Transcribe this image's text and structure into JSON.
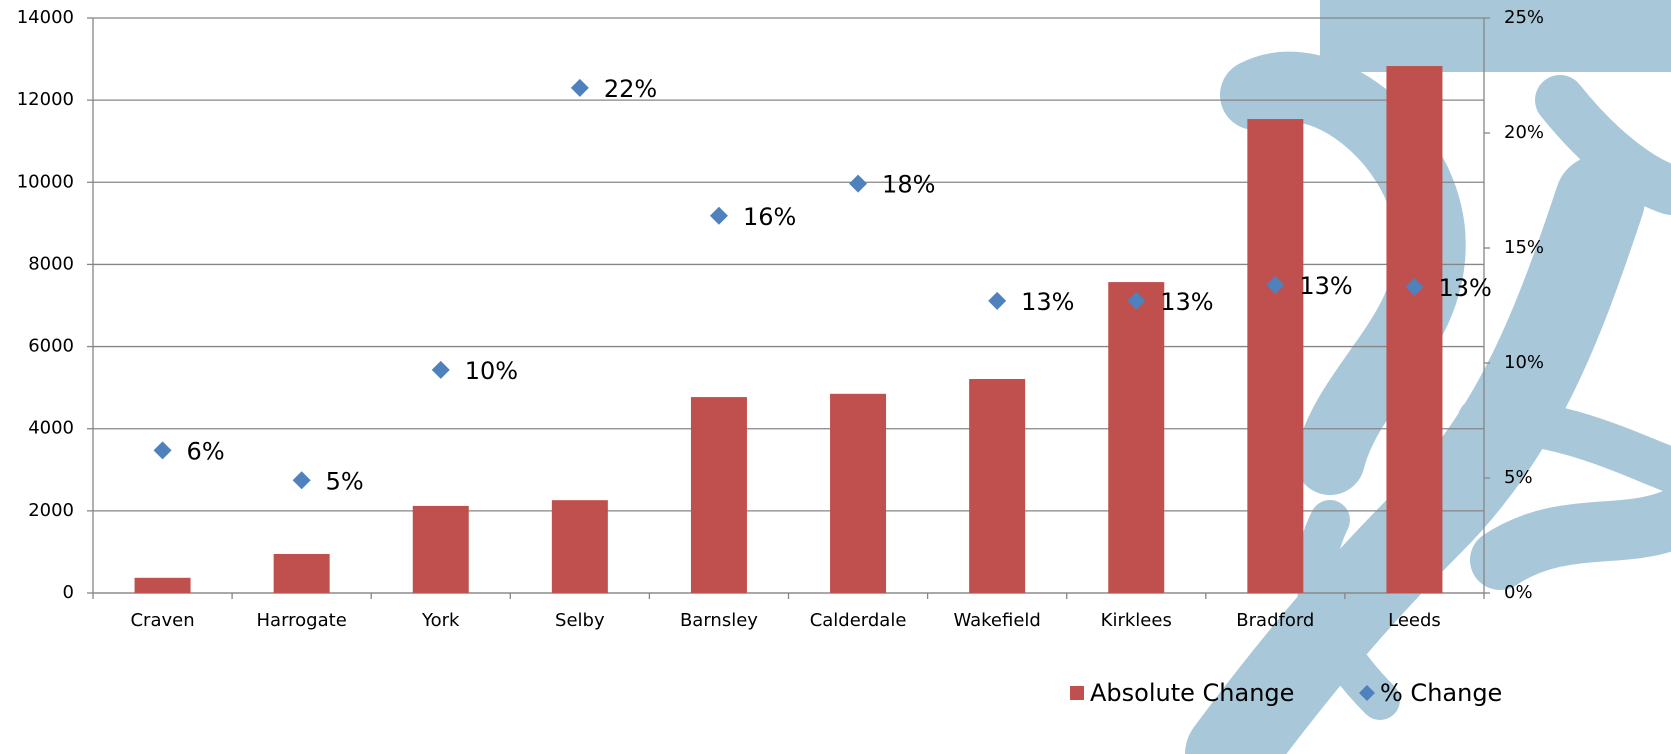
{
  "chart_data": {
    "type": "bar",
    "categories": [
      "Craven",
      "Harrogate",
      "York",
      "Selby",
      "Barnsley",
      "Calderdale",
      "Wakefield",
      "Kirklees",
      "Bradford",
      "Leeds"
    ],
    "series": [
      {
        "name": "Absolute Change",
        "type": "bar",
        "color": "#c0504d",
        "values": [
          370,
          950,
          2120,
          2260,
          4770,
          4850,
          5210,
          7570,
          11540,
          12830
        ]
      },
      {
        "name": "% Change",
        "type": "scatter",
        "marker": "diamond",
        "axis": "y2",
        "color": "#4f81bd",
        "values": [
          6.2,
          4.9,
          9.7,
          21.96,
          16.4,
          17.8,
          12.7,
          12.7,
          13.4,
          13.3
        ],
        "value_labels": [
          "6%",
          "5%",
          "10%",
          "22%",
          "16%",
          "18%",
          "13%",
          "13%",
          "13%",
          "13%"
        ]
      }
    ],
    "ylim": [
      0,
      14000
    ],
    "yticks": [
      0,
      2000,
      4000,
      6000,
      8000,
      10000,
      12000,
      14000
    ],
    "y2lim": [
      0,
      25
    ],
    "y2ticks": [
      {
        "value": 0,
        "label": "0%"
      },
      {
        "value": 5,
        "label": "5%"
      },
      {
        "value": 10,
        "label": "10%"
      },
      {
        "value": 15,
        "label": "15%"
      },
      {
        "value": 20,
        "label": "20%"
      },
      {
        "value": 25,
        "label": "25%"
      }
    ],
    "grid": true,
    "legend": "bottom-right"
  }
}
